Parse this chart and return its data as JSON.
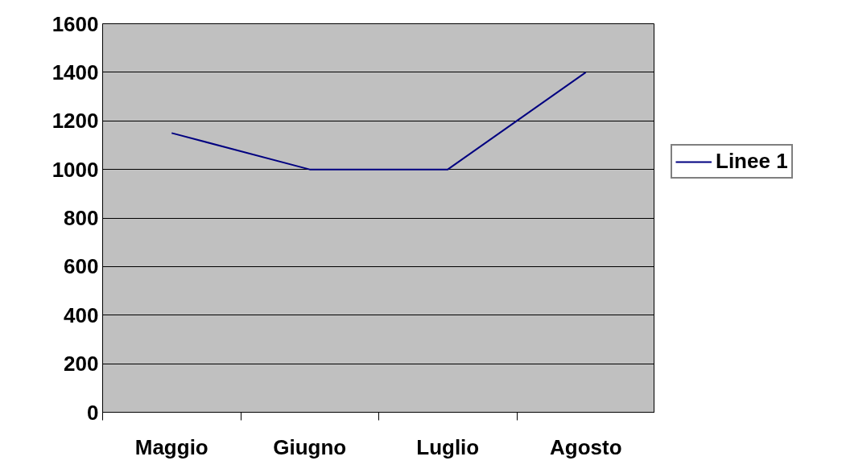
{
  "chart_data": {
    "type": "line",
    "categories": [
      "Maggio",
      "Giugno",
      "Luglio",
      "Agosto"
    ],
    "series": [
      {
        "name": "Linee 1",
        "color": "#000080",
        "values": [
          1150,
          1000,
          1000,
          1400
        ]
      }
    ],
    "ylim": [
      0,
      1600
    ],
    "yticks": [
      0,
      200,
      400,
      600,
      800,
      1000,
      1200,
      1400,
      1600
    ],
    "grid": "y",
    "legend": "right",
    "marker": "none",
    "line_style": "solid"
  }
}
